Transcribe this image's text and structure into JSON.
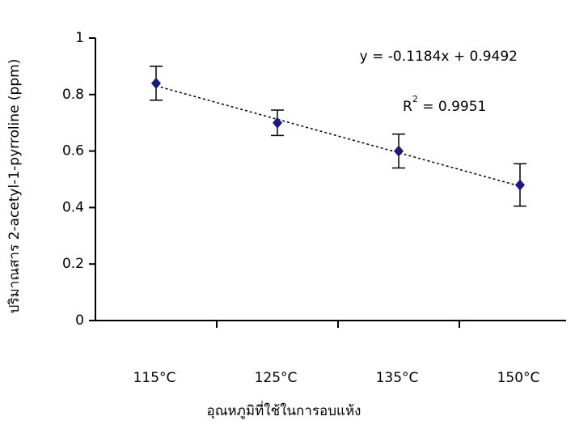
{
  "chart_data": {
    "type": "scatter",
    "y_label": "ปริมาณสาร 2-acetyl-1-pyrroline (ppm)",
    "x_label": "อุณหภูมิที่ใช้ในการอบแห้ง",
    "categories": [
      "115°C",
      "125°C",
      "135°C",
      "150°C"
    ],
    "values": [
      0.84,
      0.7,
      0.6,
      0.48
    ],
    "errors": [
      0.06,
      0.045,
      0.06,
      0.075
    ],
    "color": "#1a1a80",
    "ylim": [
      0,
      1
    ],
    "yticks": [
      0,
      0.2,
      0.4,
      0.6,
      0.8,
      1
    ],
    "trendline": {
      "slope": -0.1184,
      "intercept": 0.9492,
      "label": "y = -0.1184x + 0.9492"
    },
    "r_squared": {
      "base": "R",
      "sup": "2",
      "rest": " = 0.9951"
    }
  }
}
